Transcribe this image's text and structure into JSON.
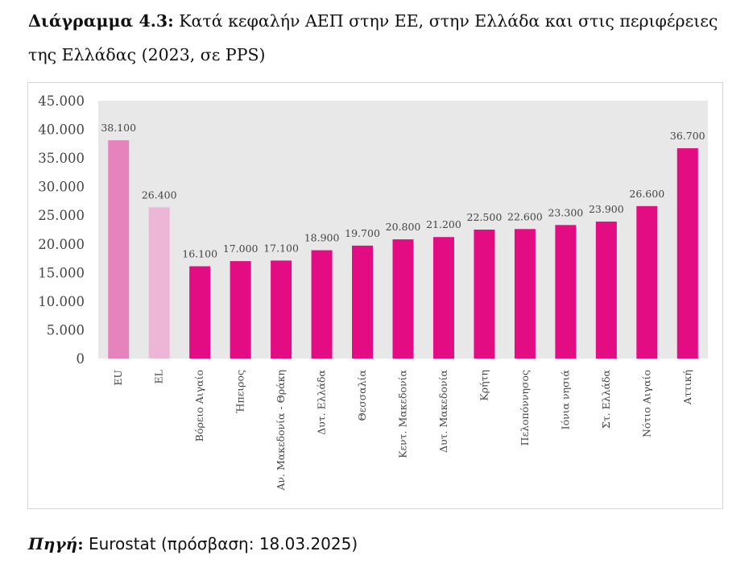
{
  "caption": {
    "label": "Διάγραμμα 4.3:",
    "text": "Κατά κεφαλήν ΑΕΠ στην ΕΕ, στην Ελλάδα και στις περιφέρειες της Ελλάδας (2023, σε PPS)"
  },
  "source": {
    "label": "Πηγή",
    "colon": ":",
    "text": "Eurostat (πρόσβαση: 18.03.2025)"
  },
  "colors": {
    "eu": "#e683bd",
    "el": "#edb6d6",
    "region": "#e30c83",
    "plot_background": "#e8e8e8",
    "text": "#444444"
  },
  "chart_data": {
    "type": "bar",
    "categories": [
      "EU",
      "EL",
      "Βόρειο Αιγαίο",
      "Ήπειρος",
      "Αν. Μακεδονία - Θράκη",
      "Δυτ. Ελλάδα",
      "Θεσσαλία",
      "Κεντ. Μακεδονία",
      "Δυτ. Μακεδονία",
      "Κρήτη",
      "Πελοπόννησος",
      "Ιόνια νησιά",
      "Στ. Ελλάδα",
      "Νότιο Αιγαίο",
      "Αττική"
    ],
    "values": [
      38100,
      26400,
      16100,
      17000,
      17100,
      18900,
      19700,
      20800,
      21200,
      22500,
      22600,
      23300,
      23900,
      26600,
      36700
    ],
    "value_labels": [
      "38.100",
      "26.400",
      "16.100",
      "17.000",
      "17.100",
      "18.900",
      "19.700",
      "20.800",
      "21.200",
      "22.500",
      "22.600",
      "23.300",
      "23.900",
      "26.600",
      "36.700"
    ],
    "bar_color_keys": [
      "eu",
      "el",
      "region",
      "region",
      "region",
      "region",
      "region",
      "region",
      "region",
      "region",
      "region",
      "region",
      "region",
      "region",
      "region"
    ],
    "ylim": [
      0,
      45000
    ],
    "yticks": [
      0,
      5000,
      10000,
      15000,
      20000,
      25000,
      30000,
      35000,
      40000,
      45000
    ],
    "ytick_labels": [
      "0",
      "5.000",
      "10.000",
      "15.000",
      "20.000",
      "25.000",
      "30.000",
      "35.000",
      "40.000",
      "45.000"
    ],
    "grid": false,
    "legend": "none"
  }
}
